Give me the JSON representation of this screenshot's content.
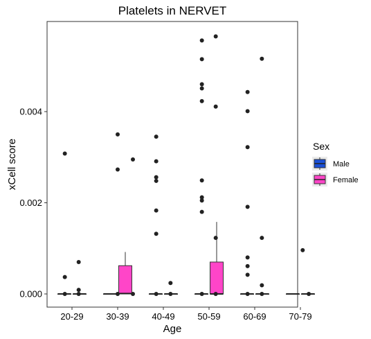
{
  "chart_data": {
    "type": "boxplot",
    "title": "Platelets in NERVET",
    "xlabel": "Age",
    "ylabel": "xCell score",
    "categories": [
      "20-29",
      "30-39",
      "40-49",
      "50-59",
      "60-69",
      "70-79"
    ],
    "ylim": [
      -3e-05,
      0.0058
    ],
    "yticks": [
      0.0,
      0.002,
      0.004
    ],
    "ytick_labels": [
      "0.000",
      "0.002",
      "0.004"
    ],
    "grid": false,
    "legend": {
      "title": "Sex",
      "position": "right",
      "entries": [
        {
          "name": "Male",
          "color": "#1a4fd6"
        },
        {
          "name": "Female",
          "color": "#ff45c8"
        }
      ]
    },
    "series": [
      {
        "name": "Male",
        "color": "#1a4fd6",
        "boxes": [
          {
            "category": "20-29",
            "q1": 0.0,
            "median": 0.0,
            "q3": 0.0,
            "whisker_low": 0.0,
            "whisker_high": 0.0,
            "outliers": []
          },
          {
            "category": "30-39",
            "q1": 0.0,
            "median": 0.0,
            "q3": 0.0,
            "whisker_low": 0.0,
            "whisker_high": 0.0,
            "outliers": []
          },
          {
            "category": "40-49",
            "q1": 0.0,
            "median": 0.0,
            "q3": 0.0,
            "whisker_low": 0.0,
            "whisker_high": 0.0,
            "outliers": []
          },
          {
            "category": "50-59",
            "q1": 0.0,
            "median": 0.0,
            "q3": 0.0,
            "whisker_low": 0.0,
            "whisker_high": 0.0,
            "outliers": []
          },
          {
            "category": "60-69",
            "q1": 0.0,
            "median": 0.0,
            "q3": 0.0,
            "whisker_low": 0.0,
            "whisker_high": 0.0,
            "outliers": []
          },
          {
            "category": "70-79",
            "q1": 0.0,
            "median": 0.0,
            "q3": 0.0,
            "whisker_low": 0.0,
            "whisker_high": 0.0,
            "outliers": []
          }
        ]
      },
      {
        "name": "Female",
        "color": "#ff45c8",
        "boxes": [
          {
            "category": "20-29",
            "q1": 0.0,
            "median": 0.0,
            "q3": 0.0,
            "whisker_low": 0.0,
            "whisker_high": 0.0,
            "outliers": []
          },
          {
            "category": "30-39",
            "q1": 0.0,
            "median": 1e-05,
            "q3": 0.00062,
            "whisker_low": 0.0,
            "whisker_high": 0.00092,
            "outliers": []
          },
          {
            "category": "40-49",
            "q1": 0.0,
            "median": 0.0,
            "q3": 0.0,
            "whisker_low": 0.0,
            "whisker_high": 0.0,
            "outliers": []
          },
          {
            "category": "50-59",
            "q1": 0.0,
            "median": 0.0,
            "q3": 0.0007,
            "whisker_low": 0.0,
            "whisker_high": 0.00158,
            "outliers": []
          },
          {
            "category": "60-69",
            "q1": 0.0,
            "median": 0.0,
            "q3": 0.0,
            "whisker_low": 0.0,
            "whisker_high": 0.0,
            "outliers": []
          },
          {
            "category": "70-79",
            "q1": 0.0,
            "median": 0.0,
            "q3": 0.0,
            "whisker_low": 0.0,
            "whisker_high": 0.0,
            "outliers": []
          }
        ]
      }
    ],
    "points": [
      {
        "category": "20-29",
        "offset": -0.47,
        "y": 0.00308
      },
      {
        "category": "20-29",
        "offset": -0.47,
        "y": 0.00037
      },
      {
        "category": "20-29",
        "offset": -0.47,
        "y": 0.0
      },
      {
        "category": "20-29",
        "offset": 0.44,
        "y": 0.0007
      },
      {
        "category": "20-29",
        "offset": 0.44,
        "y": 9e-05
      },
      {
        "category": "20-29",
        "offset": 0.44,
        "y": 0.0
      },
      {
        "category": "30-39",
        "offset": 0.0,
        "y": 0.0035
      },
      {
        "category": "30-39",
        "offset": 0.0,
        "y": 0.00273
      },
      {
        "category": "30-39",
        "offset": 0.0,
        "y": 0.0
      },
      {
        "category": "30-39",
        "offset": 1.0,
        "y": 0.00295
      },
      {
        "category": "30-39",
        "offset": 1.0,
        "y": 0.0
      },
      {
        "category": "40-49",
        "offset": -0.47,
        "y": 0.00345
      },
      {
        "category": "40-49",
        "offset": -0.47,
        "y": 0.00291
      },
      {
        "category": "40-49",
        "offset": -0.47,
        "y": 0.00256
      },
      {
        "category": "40-49",
        "offset": -0.47,
        "y": 0.00248
      },
      {
        "category": "40-49",
        "offset": -0.47,
        "y": 0.00183
      },
      {
        "category": "40-49",
        "offset": -0.47,
        "y": 0.00132
      },
      {
        "category": "40-49",
        "offset": -0.47,
        "y": 0.0
      },
      {
        "category": "40-49",
        "offset": 0.47,
        "y": 0.00024
      },
      {
        "category": "40-49",
        "offset": 0.47,
        "y": 0.0
      },
      {
        "category": "50-59",
        "offset": -0.47,
        "y": 0.00556
      },
      {
        "category": "50-59",
        "offset": -0.47,
        "y": 0.00515
      },
      {
        "category": "50-59",
        "offset": -0.47,
        "y": 0.0046
      },
      {
        "category": "50-59",
        "offset": -0.47,
        "y": 0.00451
      },
      {
        "category": "50-59",
        "offset": -0.47,
        "y": 0.00423
      },
      {
        "category": "50-59",
        "offset": -0.47,
        "y": 0.00249
      },
      {
        "category": "50-59",
        "offset": -0.47,
        "y": 0.00212
      },
      {
        "category": "50-59",
        "offset": -0.47,
        "y": 0.00205
      },
      {
        "category": "50-59",
        "offset": -0.47,
        "y": 0.0018
      },
      {
        "category": "50-59",
        "offset": -0.47,
        "y": 0.0
      },
      {
        "category": "50-59",
        "offset": 0.44,
        "y": 0.00565
      },
      {
        "category": "50-59",
        "offset": 0.44,
        "y": 0.00411
      },
      {
        "category": "50-59",
        "offset": 0.44,
        "y": 0.00123
      },
      {
        "category": "50-59",
        "offset": 0.44,
        "y": 0.0
      },
      {
        "category": "60-69",
        "offset": -0.47,
        "y": 0.00443
      },
      {
        "category": "60-69",
        "offset": -0.47,
        "y": 0.00401
      },
      {
        "category": "60-69",
        "offset": -0.47,
        "y": 0.00322
      },
      {
        "category": "60-69",
        "offset": -0.47,
        "y": 0.00191
      },
      {
        "category": "60-69",
        "offset": -0.47,
        "y": 0.0008
      },
      {
        "category": "60-69",
        "offset": -0.47,
        "y": 0.00061
      },
      {
        "category": "60-69",
        "offset": -0.47,
        "y": 0.00042
      },
      {
        "category": "60-69",
        "offset": -0.47,
        "y": 0.0
      },
      {
        "category": "60-69",
        "offset": 0.47,
        "y": 0.00516
      },
      {
        "category": "60-69",
        "offset": 0.47,
        "y": 0.00123
      },
      {
        "category": "60-69",
        "offset": 0.47,
        "y": 0.00019
      },
      {
        "category": "60-69",
        "offset": 0.47,
        "y": 0.0
      },
      {
        "category": "70-79",
        "offset": 0.15,
        "y": 0.00096
      },
      {
        "category": "70-79",
        "offset": 0.55,
        "y": 0.0
      }
    ]
  }
}
